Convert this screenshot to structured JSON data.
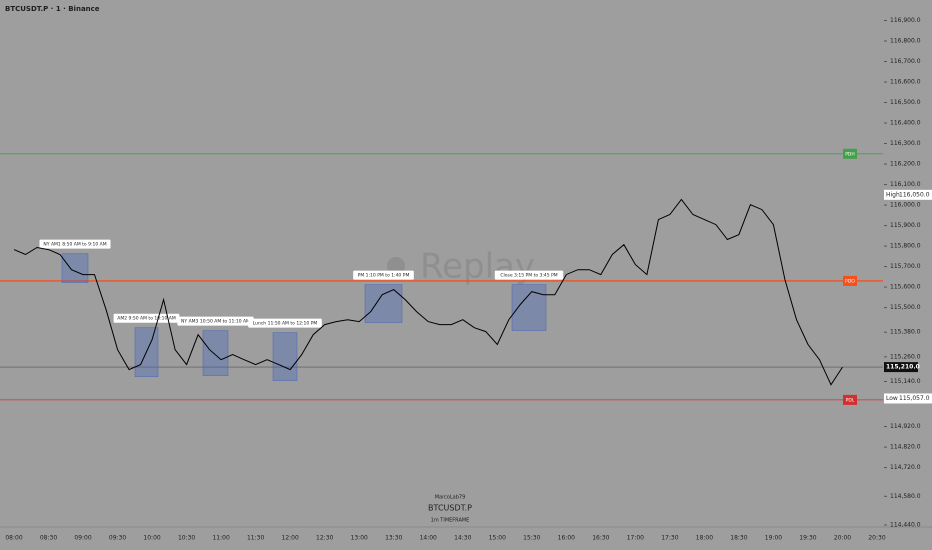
{
  "chart_data": {
    "type": "line",
    "title": "BTCUSDT.P · 1 · Binance",
    "watermark": "Replay",
    "footer": {
      "author": "MarcoLab79",
      "symbol": "BTCUSDT.P",
      "timeframe": "1m TIMEFRAME"
    },
    "categories": [
      "08:00",
      null,
      null,
      "08:30",
      null,
      null,
      "09:00",
      null,
      null,
      "09:30",
      null,
      null,
      "10:00",
      null,
      null,
      "10:30",
      null,
      null,
      "11:00",
      null,
      null,
      "11:30",
      null,
      null,
      "12:00",
      null,
      null,
      "12:30",
      null,
      null,
      "13:00",
      null,
      null,
      "13:30",
      null,
      null,
      "14:00",
      null,
      null,
      "14:30",
      null,
      null,
      "15:00",
      null,
      null,
      "15:30",
      null,
      null,
      "16:00",
      null,
      null,
      "16:30",
      null,
      null,
      "17:00",
      null,
      null,
      "17:30",
      null,
      null,
      "18:00",
      null,
      null,
      "18:30",
      null,
      null,
      "19:00",
      null,
      null,
      "19:30",
      null,
      null,
      "20:00",
      null,
      null,
      "20:30"
    ],
    "series": [
      {
        "name": "BTCUSDT.P",
        "color": "#000000",
        "values": [
          115783,
          115759,
          115793,
          115783,
          115759,
          115685,
          115661,
          115661,
          115490,
          115295,
          115198,
          115222,
          115344,
          115539,
          115295,
          115222,
          115368,
          115295,
          115246,
          115271,
          115246,
          115222,
          115246,
          115222,
          115198,
          115271,
          115368,
          115417,
          115432,
          115441,
          115432,
          115480,
          115563,
          115588,
          115539,
          115480,
          115432,
          115417,
          115417,
          115441,
          115402,
          115383,
          115320,
          115441,
          115515,
          115578,
          115563,
          115563,
          115661,
          115685,
          115685,
          115661,
          115759,
          115807,
          115710,
          115661,
          115929,
          115954,
          116027,
          115954,
          115929,
          115905,
          115832,
          115856,
          116002,
          115978,
          115905,
          115637,
          115441,
          115320,
          115246,
          115124,
          115210,
          null,
          null,
          null
        ]
      }
    ],
    "ylim": [
      114440,
      117000
    ],
    "yticks": [
      {
        "value": 116900,
        "label": "116,900.0"
      },
      {
        "value": 116800,
        "label": "116,800.0"
      },
      {
        "value": 116700,
        "label": "116,700.0"
      },
      {
        "value": 116600,
        "label": "116,600.0"
      },
      {
        "value": 116500,
        "label": "116,500.0"
      },
      {
        "value": 116400,
        "label": "116,400.0"
      },
      {
        "value": 116300,
        "label": "116,300.0"
      },
      {
        "value": 116200,
        "label": "116,200.0"
      },
      {
        "value": 116100,
        "label": "116,100.0"
      },
      {
        "value": 116000,
        "label": "116,000.0"
      },
      {
        "value": 115900,
        "label": "115,900.0"
      },
      {
        "value": 115800,
        "label": "115,800.0"
      },
      {
        "value": 115700,
        "label": "115,700.0"
      },
      {
        "value": 115600,
        "label": "115,600.0"
      },
      {
        "value": 115500,
        "label": "115,500.0"
      },
      {
        "value": 115380,
        "label": "115,380.0"
      },
      {
        "value": 115260,
        "label": "115,260.0"
      },
      {
        "value": 115140,
        "label": "115,140.0"
      },
      {
        "value": 114920,
        "label": "114,920.0"
      },
      {
        "value": 114820,
        "label": "114,820.0"
      },
      {
        "value": 114720,
        "label": "114,720.0"
      },
      {
        "value": 114580,
        "label": "114,580.0"
      },
      {
        "value": 114440,
        "label": "114,440.0"
      }
    ],
    "levels": [
      {
        "name": "PDH",
        "value": 116250,
        "color": "#43a047"
      },
      {
        "name": "PDO",
        "value": 115630,
        "color": "#f4511e"
      },
      {
        "name": "PDL",
        "value": 115050,
        "color": "#d32f2f"
      }
    ],
    "markers": [
      {
        "name": "High",
        "value": 116050,
        "label": "116,050.0"
      },
      {
        "name": "Low",
        "value": 115057,
        "label": "115,057.0"
      }
    ],
    "last_price": {
      "value": 115210,
      "label": "115,210.0"
    },
    "sessions": [
      {
        "label": "NY AM1 8:50 AM to 9:10 AM",
        "high": 115763,
        "low": 115622
      },
      {
        "label": "AM2 9:50 AM to 10:10 AM",
        "high": 115402,
        "low": 115163
      },
      {
        "label": "NY AM3 10:50 AM to 11:10 AM",
        "high": 115388,
        "low": 115168
      },
      {
        "label": "Lunch 11:50 AM to 12:10 PM",
        "high": 115378,
        "low": 115144
      },
      {
        "label": "PM 1:10 PM to 1:40 PM",
        "high": 115612,
        "low": 115427
      },
      {
        "label": "Close 3:15 PM to 3:45 PM",
        "high": 115612,
        "low": 115388
      }
    ]
  }
}
